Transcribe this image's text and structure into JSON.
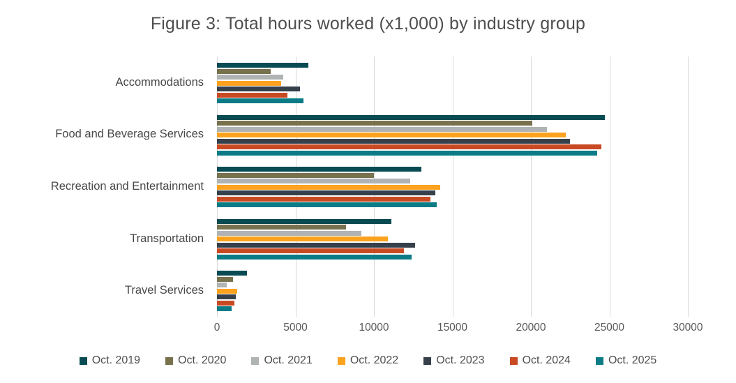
{
  "chart_data": {
    "type": "bar",
    "orientation": "horizontal",
    "title": "Figure 3: Total hours worked (x1,000) by industry group",
    "categories": [
      "Accommodations",
      "Food and Beverage Services",
      "Recreation and Entertainment",
      "Transportation",
      "Travel Services"
    ],
    "series": [
      {
        "name": "Oct. 2019",
        "color": "#084B52",
        "values": [
          5800,
          24700,
          13000,
          11100,
          1900
        ]
      },
      {
        "name": "Oct. 2020",
        "color": "#77714E",
        "values": [
          3400,
          20100,
          10000,
          8200,
          1000
        ]
      },
      {
        "name": "Oct. 2021",
        "color": "#AFB3B3",
        "values": [
          4200,
          21000,
          12300,
          9200,
          600
        ]
      },
      {
        "name": "Oct. 2022",
        "color": "#FCA21F",
        "values": [
          4100,
          22200,
          14200,
          10900,
          1300
        ]
      },
      {
        "name": "Oct. 2023",
        "color": "#36404B",
        "values": [
          5300,
          22500,
          13900,
          12600,
          1200
        ]
      },
      {
        "name": "Oct. 2024",
        "color": "#C84A23",
        "values": [
          4500,
          24500,
          13600,
          11900,
          1100
        ]
      },
      {
        "name": "Oct. 2025",
        "color": "#0B7C86",
        "values": [
          5500,
          24200,
          14000,
          12400,
          950
        ]
      }
    ],
    "xlim": [
      0,
      30000
    ],
    "x_ticks": [
      0,
      5000,
      10000,
      15000,
      20000,
      25000,
      30000
    ],
    "x_tick_labels": [
      "0",
      "5000",
      "10000",
      "15000",
      "20000",
      "25000",
      "30000"
    ],
    "grid": "vertical-gridlines-on",
    "legend_position": "bottom",
    "colors_meaning": "one color per October year series",
    "gridline_color": "#d9d9d9"
  }
}
